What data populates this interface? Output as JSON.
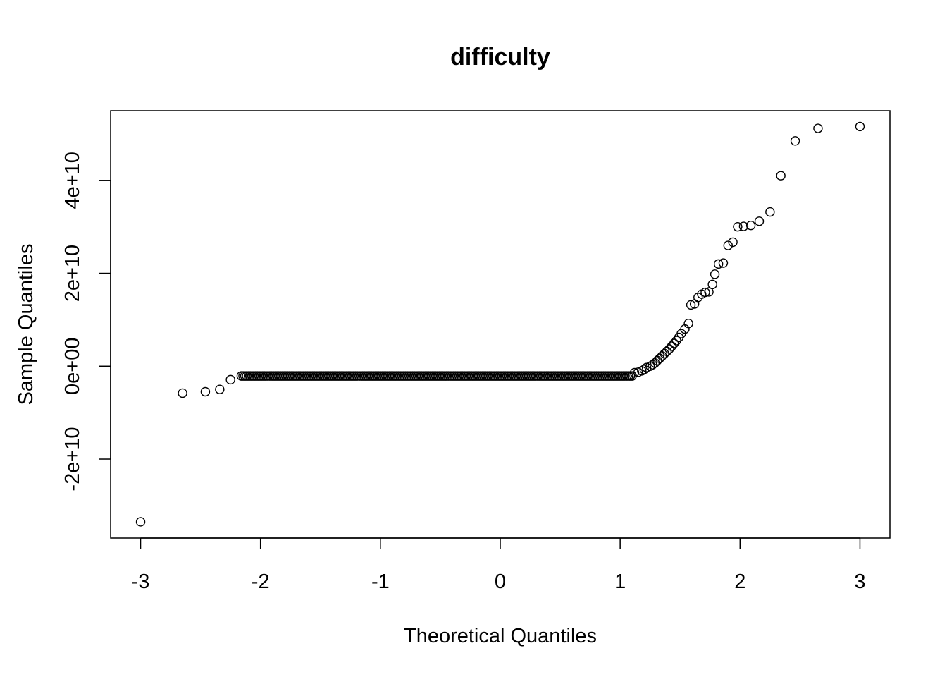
{
  "chart_data": {
    "type": "scatter",
    "title": "difficulty",
    "xlabel": "Theoretical Quantiles",
    "ylabel": "Sample Quantiles",
    "xlim": [
      -3.25,
      3.25
    ],
    "ylim": [
      -37000000000,
      55000000000
    ],
    "x_ticks": [
      -3,
      -2,
      -1,
      0,
      1,
      2,
      3
    ],
    "x_tick_labels": [
      "-3",
      "-2",
      "-1",
      "0",
      "1",
      "2",
      "3"
    ],
    "y_ticks": [
      -20000000000,
      0,
      20000000000,
      40000000000
    ],
    "y_tick_labels": [
      "-2e+10",
      "0e+00",
      "2e+10",
      "4e+10"
    ],
    "grid": false,
    "marker": "open-circle",
    "points": [
      {
        "x": -3.0,
        "y": -33500000000
      },
      {
        "x": -2.65,
        "y": -5800000000
      },
      {
        "x": -2.46,
        "y": -5500000000
      },
      {
        "x": -2.34,
        "y": -5000000000
      },
      {
        "x": -2.25,
        "y": -2900000000
      },
      {
        "x": 1.12,
        "y": -1400000000
      },
      {
        "x": 1.15,
        "y": -1300000000
      },
      {
        "x": 1.18,
        "y": -1000000000
      },
      {
        "x": 1.2,
        "y": -700000000
      },
      {
        "x": 1.22,
        "y": -300000000
      },
      {
        "x": 1.25,
        "y": 0
      },
      {
        "x": 1.27,
        "y": 300000000
      },
      {
        "x": 1.29,
        "y": 700000000
      },
      {
        "x": 1.31,
        "y": 1200000000
      },
      {
        "x": 1.33,
        "y": 1700000000
      },
      {
        "x": 1.35,
        "y": 2200000000
      },
      {
        "x": 1.37,
        "y": 2700000000
      },
      {
        "x": 1.39,
        "y": 3200000000
      },
      {
        "x": 1.41,
        "y": 3700000000
      },
      {
        "x": 1.43,
        "y": 4300000000
      },
      {
        "x": 1.45,
        "y": 4900000000
      },
      {
        "x": 1.47,
        "y": 5500000000
      },
      {
        "x": 1.49,
        "y": 6200000000
      },
      {
        "x": 1.51,
        "y": 7000000000
      },
      {
        "x": 1.54,
        "y": 8000000000
      },
      {
        "x": 1.57,
        "y": 9200000000
      },
      {
        "x": 1.59,
        "y": 13200000000
      },
      {
        "x": 1.62,
        "y": 13400000000
      },
      {
        "x": 1.65,
        "y": 14800000000
      },
      {
        "x": 1.68,
        "y": 15500000000
      },
      {
        "x": 1.71,
        "y": 15900000000
      },
      {
        "x": 1.74,
        "y": 16000000000
      },
      {
        "x": 1.77,
        "y": 17600000000
      },
      {
        "x": 1.79,
        "y": 19800000000
      },
      {
        "x": 1.82,
        "y": 22000000000
      },
      {
        "x": 1.86,
        "y": 22200000000
      },
      {
        "x": 1.9,
        "y": 26000000000
      },
      {
        "x": 1.94,
        "y": 26700000000
      },
      {
        "x": 1.98,
        "y": 30000000000
      },
      {
        "x": 2.03,
        "y": 30100000000
      },
      {
        "x": 2.09,
        "y": 30300000000
      },
      {
        "x": 2.16,
        "y": 31200000000
      },
      {
        "x": 2.25,
        "y": 33200000000
      },
      {
        "x": 2.34,
        "y": 41000000000
      },
      {
        "x": 2.46,
        "y": 48500000000
      },
      {
        "x": 2.65,
        "y": 51200000000
      },
      {
        "x": 3.0,
        "y": 51600000000
      }
    ],
    "flat_segment": {
      "y": -2100000000,
      "x_start": -2.16,
      "x_end": 1.1,
      "count": 220
    }
  }
}
